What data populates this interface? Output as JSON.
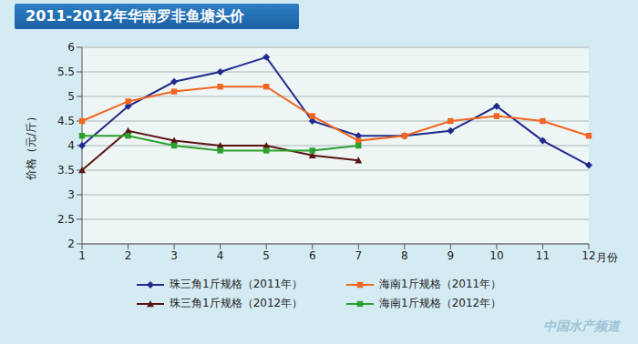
{
  "chart_data": {
    "type": "line",
    "title": "2011-2012年华南罗非鱼塘头价",
    "y_label": "价格（元/斤）",
    "x_label": "月份",
    "watermark": "中国水产频道",
    "categories": [
      "1",
      "2",
      "3",
      "4",
      "5",
      "6",
      "7",
      "8",
      "9",
      "10",
      "11",
      "12"
    ],
    "ylim": [
      2,
      6
    ],
    "yticks": [
      2,
      2.5,
      3,
      3.5,
      4,
      4.5,
      5,
      5.5,
      6
    ],
    "grid": true,
    "legend": "bottom",
    "series": [
      {
        "name": "珠三角1斤规格（2011年）",
        "color": "#1f2a8c",
        "marker": "diamond",
        "values": [
          4.0,
          4.8,
          5.3,
          5.5,
          5.8,
          4.5,
          4.2,
          4.2,
          4.3,
          4.8,
          4.1,
          3.6
        ]
      },
      {
        "name": "海南1斤规格（2011年）",
        "color": "#f26522",
        "marker": "square",
        "values": [
          4.5,
          4.9,
          5.1,
          5.2,
          5.2,
          4.6,
          4.1,
          4.2,
          4.5,
          4.6,
          4.5,
          4.2
        ]
      },
      {
        "name": "珠三角1斤规格（2012年）",
        "color": "#5c1212",
        "marker": "triangle",
        "values": [
          3.5,
          4.3,
          4.1,
          4.0,
          4.0,
          3.8,
          3.7,
          null,
          null,
          null,
          null,
          null
        ]
      },
      {
        "name": "海南1斤规格（2012年）",
        "color": "#2ca02c",
        "marker": "square",
        "values": [
          4.2,
          4.2,
          4.0,
          3.9,
          3.9,
          3.9,
          4.0,
          null,
          null,
          null,
          null,
          null
        ]
      }
    ]
  }
}
